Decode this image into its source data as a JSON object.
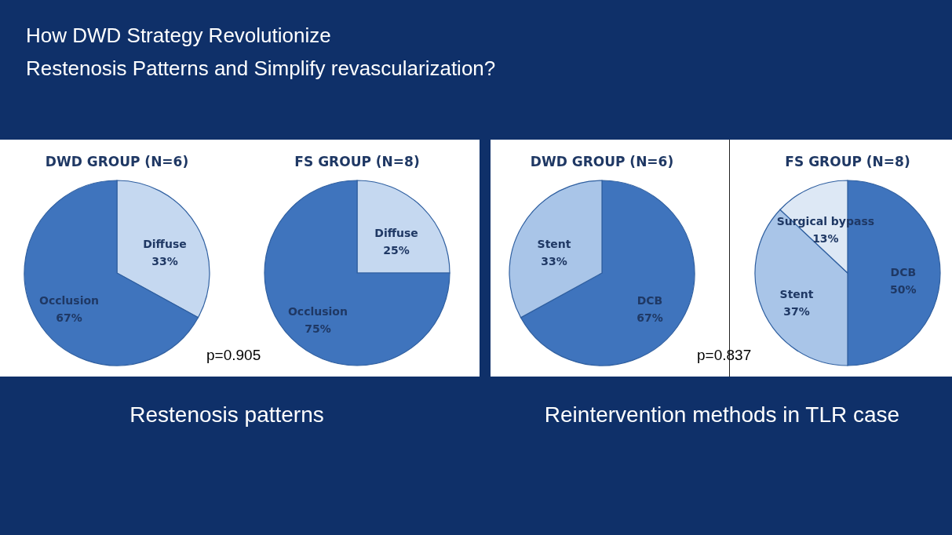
{
  "chart_data": [
    {
      "type": "pie",
      "title": "DWD GROUP (N=6)",
      "categories": [
        "Diffuse",
        "Occlusion"
      ],
      "values": [
        33,
        67
      ],
      "value_labels": [
        "33%",
        "67%"
      ],
      "colors": [
        "#c5d8f0",
        "#3f74bd"
      ],
      "annotations": [
        "How DWD Strategy Revolutionize",
        "Restenosis Patterns and Simplify revascularization?"
      ]
    },
    {
      "type": "pie",
      "title": "FS GROUP (N=8)",
      "categories": [
        "Diffuse",
        "Occlusion"
      ],
      "values": [
        25,
        75
      ],
      "value_labels": [
        "25%",
        "75%"
      ],
      "colors": [
        "#c5d8f0",
        "#3f74bd"
      ],
      "annotations": [
        "p=0.905",
        "Restenosis patterns"
      ]
    },
    {
      "type": "pie",
      "title": "DWD GROUP (N=6)",
      "categories": [
        "DCB",
        "Stent"
      ],
      "values": [
        67,
        33
      ],
      "value_labels": [
        "67%",
        "33%"
      ],
      "colors": [
        "#3f74bd",
        "#a9c5e8"
      ]
    },
    {
      "type": "pie",
      "title": "FS GROUP (N=8)",
      "categories": [
        "DCB",
        "Stent",
        "Surgical bypass"
      ],
      "values": [
        50,
        37,
        13
      ],
      "value_labels": [
        "50%",
        "37%",
        "13%"
      ],
      "colors": [
        "#3f74bd",
        "#a9c5e8",
        "#dde8f5"
      ],
      "annotations": [
        "p=0.837",
        "Reintervention methods in TLR case"
      ]
    }
  ]
}
